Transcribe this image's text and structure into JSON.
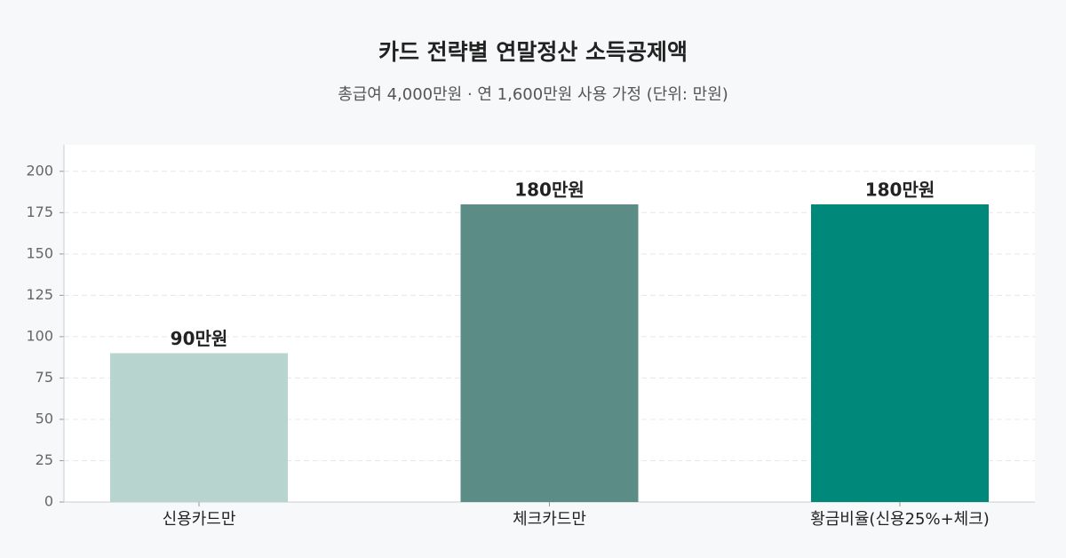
{
  "chart_data": {
    "type": "bar",
    "title": "카드 전략별 연말정산 소득공제액",
    "subtitle": "총급여 4,000만원 · 연 1,600만원 사용 가정 (단위: 만원)",
    "categories": [
      "신용카드만",
      "체크카드만",
      "황금비율(신용25%+체크)"
    ],
    "values": [
      90,
      180,
      180
    ],
    "value_labels": [
      "90만원",
      "180만원",
      "180만원"
    ],
    "colors": [
      "#b8d4cf",
      "#5b8c85",
      "#00897b"
    ],
    "ylim": [
      0,
      216
    ],
    "yticks": [
      0,
      25,
      50,
      75,
      100,
      125,
      150,
      175,
      200
    ],
    "grid": true
  }
}
